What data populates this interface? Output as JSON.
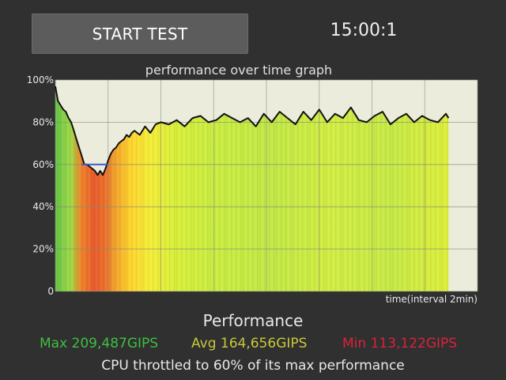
{
  "header": {
    "start_button_label": "START TEST",
    "timer": "15:00:1"
  },
  "graph": {
    "title": "performance over time graph",
    "x_axis_label": "time(interval 2min)",
    "y_tick_labels": [
      "100%",
      "80%",
      "60%",
      "40%",
      "20%",
      "0"
    ]
  },
  "chart_data": {
    "type": "area",
    "title": "performance over time graph",
    "xlabel": "time(interval 2min)",
    "ylabel": "",
    "ylim": [
      0,
      100
    ],
    "yticks": [
      "100%",
      "80%",
      "60%",
      "40%",
      "20%",
      "0"
    ],
    "grid": true,
    "x_range": [
      0,
      16
    ],
    "series": [
      {
        "x": [
          0,
          0.1,
          0.2,
          0.3,
          0.4,
          0.5,
          0.6,
          0.7,
          0.8,
          0.9,
          1.0,
          1.1,
          1.2,
          1.3,
          1.4,
          1.5,
          1.6,
          1.7,
          1.8,
          1.9,
          2.0,
          2.1,
          2.2,
          2.3,
          2.4,
          2.5,
          2.6,
          2.7,
          2.8,
          2.9,
          3.0,
          3.2,
          3.4,
          3.6,
          3.8,
          4.0,
          4.3,
          4.6,
          4.9,
          5.2,
          5.5,
          5.8,
          6.1,
          6.4,
          6.7,
          7.0,
          7.3,
          7.6,
          7.9,
          8.2,
          8.5,
          8.8,
          9.1,
          9.4,
          9.7,
          10.0,
          10.3,
          10.6,
          10.9,
          11.2,
          11.5,
          11.8,
          12.1,
          12.4,
          12.7,
          13.0,
          13.3,
          13.6,
          13.9,
          14.2,
          14.5,
          14.8,
          14.9
        ],
        "values": [
          97,
          90,
          88,
          86,
          85,
          82,
          80,
          76,
          72,
          68,
          64,
          60,
          60,
          59,
          58,
          57,
          55,
          57,
          55,
          58,
          62,
          65,
          67,
          68,
          70,
          71,
          72,
          74,
          73,
          75,
          76,
          74,
          78,
          75,
          79,
          80,
          79,
          81,
          78,
          82,
          83,
          80,
          81,
          84,
          82,
          80,
          82,
          78,
          84,
          80,
          85,
          82,
          79,
          85,
          81,
          86,
          80,
          84,
          82,
          87,
          81,
          80,
          83,
          85,
          79,
          82,
          84,
          80,
          83,
          81,
          80,
          84,
          82
        ]
      },
      {
        "name": "",
        "color": "#3a5bd8",
        "x": [
          1.0,
          1.5,
          2.0
        ],
        "values": [
          60,
          60,
          60
        ]
      }
    ]
  },
  "performance": {
    "title": "Performance",
    "max": "Max 209,487GIPS",
    "avg": "Avg 164,656GIPS",
    "min": "Min 113,122GIPS",
    "throttle_message": "CPU throttled to 60% of its max performance"
  },
  "colors": {
    "background": "#303030",
    "plot_background": "#ececdc",
    "max": "#3fbf3f",
    "avg": "#c8c83a",
    "min": "#d8233a"
  }
}
